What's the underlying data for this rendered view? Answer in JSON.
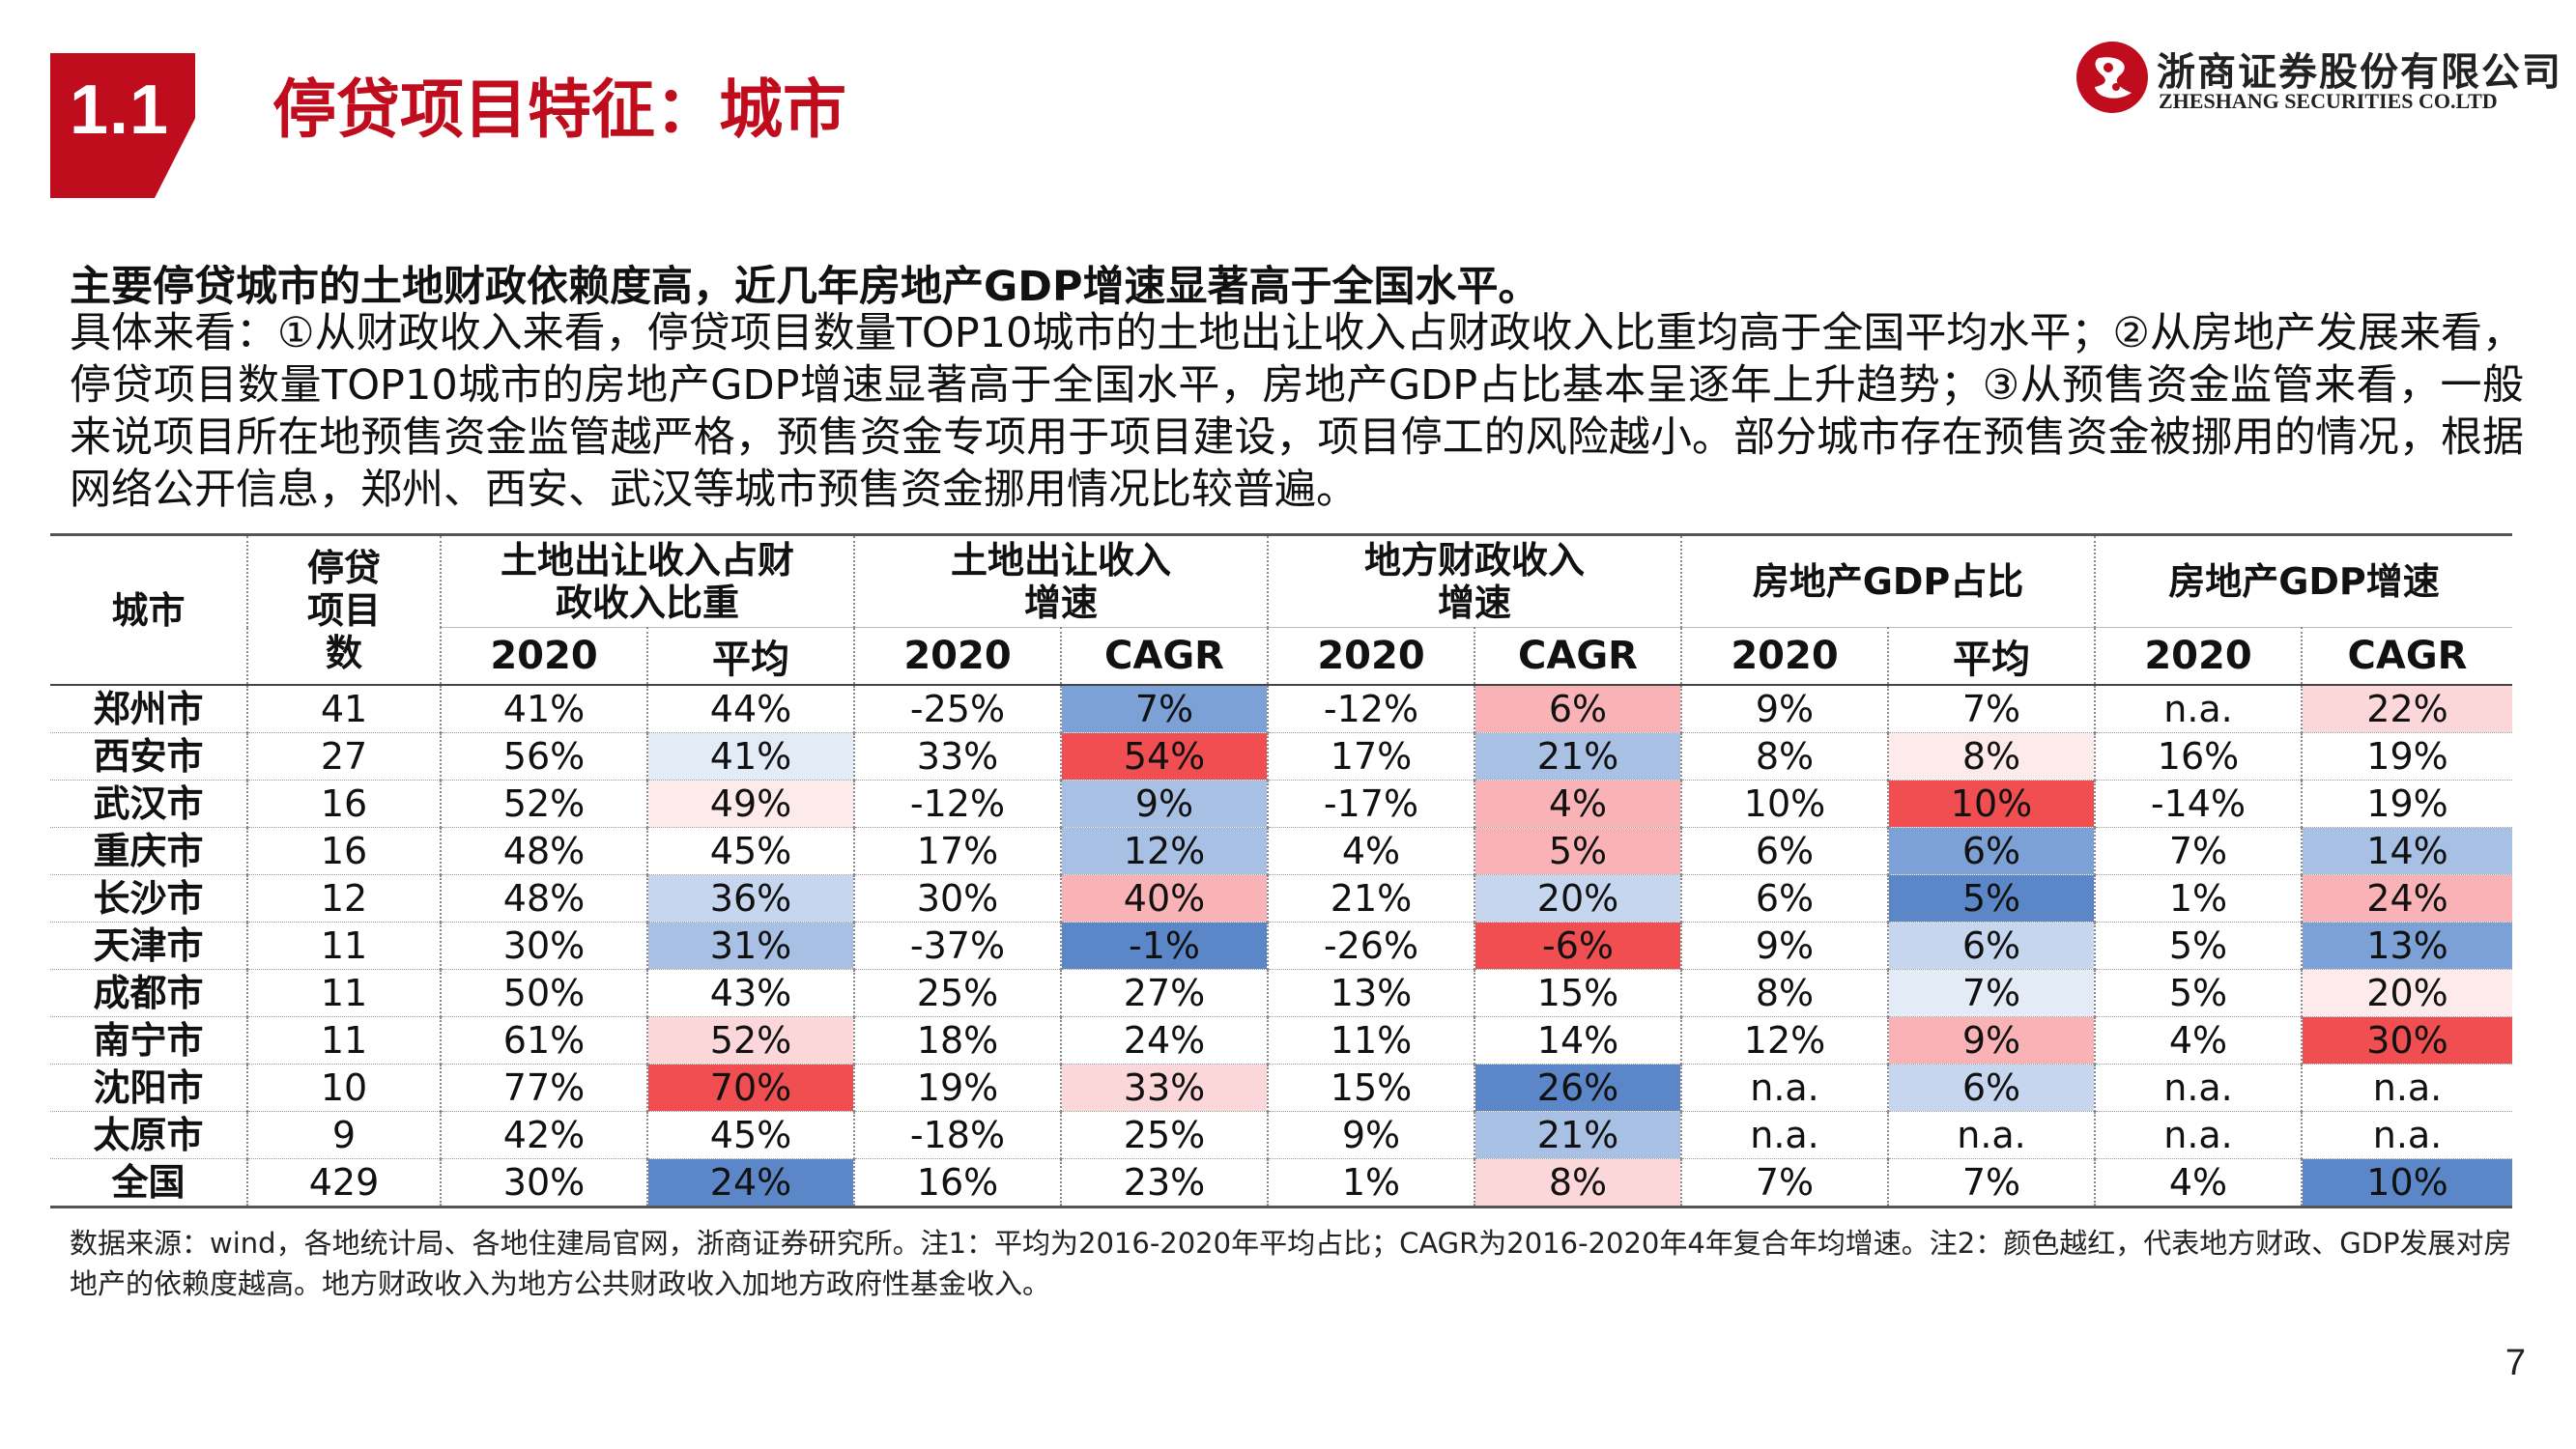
{
  "header": {
    "section_number": "1.1",
    "title": "停贷项目特征：城市",
    "logo_cn": "浙商证券股份有限公司",
    "logo_en": "ZHESHANG SECURITIES CO.LTD"
  },
  "summary": "主要停贷城市的土地财政依赖度高，近几年房地产GDP增速显著高于全国水平。",
  "detail": "具体来看：①从财政收入来看，停贷项目数量TOP10城市的土地出让收入占财政收入比重均高于全国平均水平；②从房地产发展来看，停贷项目数量TOP10城市的房地产GDP增速显著高于全国水平，房地产GDP占比基本呈逐年上升趋势；③从预售资金监管来看，一般来说项目所在地预售资金监管越严格，预售资金专项用于项目建设，项目停工的风险越小。部分城市存在预售资金被挪用的情况，根据网络公开信息，郑州、西安、武汉等城市预售资金挪用情况比较普遍。",
  "table": {
    "col_city": "城市",
    "col_count": "停贷项目数",
    "groups": [
      "土地出让收入占财政收入比重",
      "土地出让收入增速",
      "地方财政收入增速",
      "房地产GDP占比",
      "房地产GDP增速"
    ],
    "subheaders": [
      "2020",
      "平均",
      "2020",
      "CAGR",
      "2020",
      "CAGR",
      "2020",
      "平均",
      "2020",
      "CAGR"
    ],
    "colors": {
      "c1": "#f04e50",
      "c2": "#f6888a",
      "c3": "#f9b3b6",
      "c4": "#fcd7d9",
      "c5": "#fdebec",
      "b1": "#5b87c8",
      "b2": "#7ca1d6",
      "b3": "#a7c0e4",
      "b4": "#c6d6ee",
      "b5": "#e3ebf7"
    },
    "rows": [
      {
        "city": "郑州市",
        "count": "41",
        "cells": [
          "41%",
          "44%",
          "-25%",
          "7%",
          "-12%",
          "6%",
          "9%",
          "7%",
          "n.a.",
          "22%"
        ],
        "heat": [
          "",
          "",
          "",
          "b2",
          "",
          "c3",
          "",
          "",
          "",
          "c4"
        ]
      },
      {
        "city": "西安市",
        "count": "27",
        "cells": [
          "56%",
          "41%",
          "33%",
          "54%",
          "17%",
          "21%",
          "8%",
          "8%",
          "16%",
          "19%"
        ],
        "heat": [
          "",
          "b5",
          "",
          "c1",
          "",
          "b3",
          "",
          "c5",
          "",
          ""
        ]
      },
      {
        "city": "武汉市",
        "count": "16",
        "cells": [
          "52%",
          "49%",
          "-12%",
          "9%",
          "-17%",
          "4%",
          "10%",
          "10%",
          "-14%",
          "19%"
        ],
        "heat": [
          "",
          "c5",
          "",
          "b3",
          "",
          "c3",
          "",
          "c1",
          "",
          ""
        ]
      },
      {
        "city": "重庆市",
        "count": "16",
        "cells": [
          "48%",
          "45%",
          "17%",
          "12%",
          "4%",
          "5%",
          "6%",
          "6%",
          "7%",
          "14%"
        ],
        "heat": [
          "",
          "",
          "",
          "b3",
          "",
          "c3",
          "",
          "b2",
          "",
          "b3"
        ]
      },
      {
        "city": "长沙市",
        "count": "12",
        "cells": [
          "48%",
          "36%",
          "30%",
          "40%",
          "21%",
          "20%",
          "6%",
          "5%",
          "1%",
          "24%"
        ],
        "heat": [
          "",
          "b4",
          "",
          "c3",
          "",
          "b4",
          "",
          "b1",
          "",
          "c3"
        ]
      },
      {
        "city": "天津市",
        "count": "11",
        "cells": [
          "30%",
          "31%",
          "-37%",
          "-1%",
          "-26%",
          "-6%",
          "9%",
          "6%",
          "5%",
          "13%"
        ],
        "heat": [
          "",
          "b3",
          "",
          "b1",
          "",
          "c1",
          "",
          "b4",
          "",
          "b2"
        ]
      },
      {
        "city": "成都市",
        "count": "11",
        "cells": [
          "50%",
          "43%",
          "25%",
          "27%",
          "13%",
          "15%",
          "8%",
          "7%",
          "5%",
          "20%"
        ],
        "heat": [
          "",
          "",
          "",
          "",
          "",
          "",
          "",
          "b5",
          "",
          "c5"
        ]
      },
      {
        "city": "南宁市",
        "count": "11",
        "cells": [
          "61%",
          "52%",
          "18%",
          "24%",
          "11%",
          "14%",
          "12%",
          "9%",
          "4%",
          "30%"
        ],
        "heat": [
          "",
          "c4",
          "",
          "",
          "",
          "",
          "",
          "c3",
          "",
          "c1"
        ]
      },
      {
        "city": "沈阳市",
        "count": "10",
        "cells": [
          "77%",
          "70%",
          "19%",
          "33%",
          "15%",
          "26%",
          "n.a.",
          "6%",
          "n.a.",
          "n.a."
        ],
        "heat": [
          "",
          "c1",
          "",
          "c4",
          "",
          "b1",
          "",
          "b4",
          "",
          ""
        ]
      },
      {
        "city": "太原市",
        "count": "9",
        "cells": [
          "42%",
          "45%",
          "-18%",
          "25%",
          "9%",
          "21%",
          "n.a.",
          "n.a.",
          "n.a.",
          "n.a."
        ],
        "heat": [
          "",
          "",
          "",
          "",
          "",
          "b3",
          "",
          "",
          "",
          ""
        ]
      },
      {
        "city": "全国",
        "count": "429",
        "cells": [
          "30%",
          "24%",
          "16%",
          "23%",
          "1%",
          "8%",
          "7%",
          "7%",
          "4%",
          "10%"
        ],
        "heat": [
          "",
          "b1",
          "",
          "",
          "",
          "c4",
          "",
          "",
          "",
          "b1"
        ]
      }
    ]
  },
  "footnote": "数据来源：wind，各地统计局、各地住建局官网，浙商证券研究所。注1：平均为2016-2020年平均占比；CAGR为2016-2020年4年复合年均增速。注2：颜色越红，代表地方财政、GDP发展对房地产的依赖度越高。地方财政收入为地方公共财政收入加地方政府性基金收入。",
  "page_number": "7"
}
